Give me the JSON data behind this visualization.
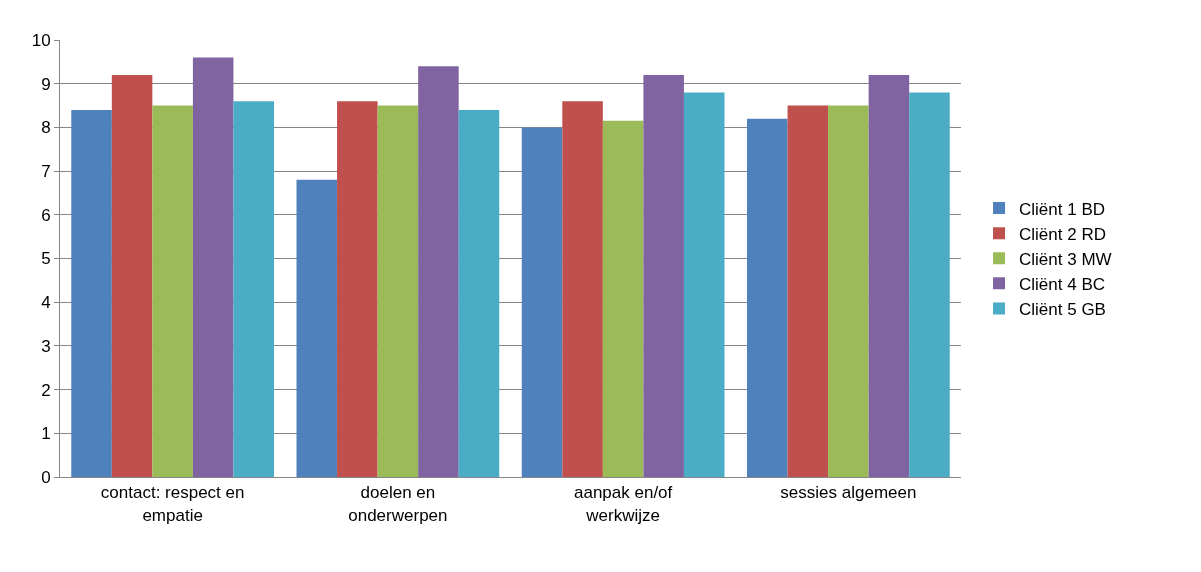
{
  "chart_data": {
    "type": "bar",
    "categories": [
      "contact: respect en empatie",
      "doelen en onderwerpen",
      "aanpak en/of werkwijze",
      "sessies algemeen"
    ],
    "series": [
      {
        "name": "Cliënt 1 BD",
        "color": "#4f81bd",
        "values": [
          8.4,
          6.8,
          8.0,
          8.2
        ]
      },
      {
        "name": "Cliënt 2 RD",
        "color": "#c0504d",
        "values": [
          9.2,
          8.6,
          8.6,
          8.5
        ]
      },
      {
        "name": "Cliënt 3 MW",
        "color": "#9bbb59",
        "values": [
          8.5,
          8.5,
          8.15,
          8.5
        ]
      },
      {
        "name": "Cliënt 4 BC",
        "color": "#8064a2",
        "values": [
          9.6,
          9.4,
          9.2,
          9.2
        ]
      },
      {
        "name": "Cliënt 5 GB",
        "color": "#4bacc6",
        "values": [
          8.6,
          8.4,
          8.8,
          8.8
        ]
      }
    ],
    "ylim": [
      0,
      10
    ],
    "yticks": [
      0,
      1,
      2,
      3,
      4,
      5,
      6,
      7,
      8,
      9,
      10
    ],
    "grid": "y",
    "legend": "right"
  }
}
